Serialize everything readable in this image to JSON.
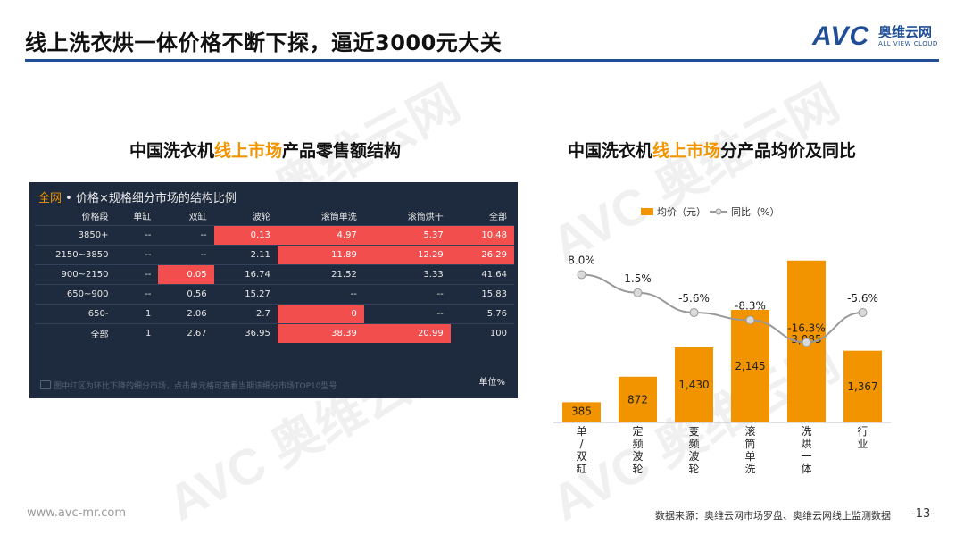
{
  "page": {
    "title": "线上洗衣烘一体价格不断下探，逼近3000元大关",
    "logo": {
      "mark": "AVC",
      "cn": "奥维云网",
      "en": "ALL VIEW CLOUD"
    },
    "watermark": {
      "mark": "AVC",
      "cn": "奥维云网",
      "en": "ALL VIEW CLOUD"
    },
    "footer": {
      "url": "www.avc-mr.com",
      "source": "数据来源：奥维云网市场罗盘、奥维云网线上监测数据",
      "page_number": "-13-"
    },
    "colors": {
      "brand_blue": "#1f4e96",
      "accent_orange": "#f29400",
      "table_bg": "#1e2a3d",
      "highlight_red": "#f24e4e",
      "line_gray": "#999999"
    }
  },
  "left": {
    "subtitle": {
      "pre": "中国洗衣机",
      "highlight": "线上市场",
      "post": "产品零售额结构"
    },
    "panel_tag": "全网",
    "panel_title": " • 价格×规格细分市场的结构比例",
    "columns": [
      "价格段",
      "单缸",
      "双缸",
      "波轮",
      "滚筒单洗",
      "滚筒烘干",
      "全部"
    ],
    "rows": [
      {
        "cells": [
          "3850+",
          "--",
          "--",
          "0.13",
          "4.97",
          "5.37",
          "10.48"
        ],
        "red": [
          3,
          4,
          5,
          6
        ]
      },
      {
        "cells": [
          "2150~3850",
          "--",
          "--",
          "2.11",
          "11.89",
          "12.29",
          "26.29"
        ],
        "red": [
          4,
          5,
          6
        ]
      },
      {
        "cells": [
          "900~2150",
          "--",
          "0.05",
          "16.74",
          "21.52",
          "3.33",
          "41.64"
        ],
        "red": [
          2
        ]
      },
      {
        "cells": [
          "650~900",
          "--",
          "0.56",
          "15.27",
          "--",
          "--",
          "15.83"
        ],
        "red": []
      },
      {
        "cells": [
          "650-",
          "1",
          "2.06",
          "2.7",
          "0",
          "--",
          "5.76"
        ],
        "red": [
          4
        ]
      },
      {
        "cells": [
          "全部",
          "1",
          "2.67",
          "36.95",
          "38.39",
          "20.99",
          "100"
        ],
        "red": [
          4,
          5
        ]
      }
    ],
    "footnote": "图中红区为环比下降的细分市场，点击单元格可查看当期该细分市场TOP10型号",
    "unit": "单位%"
  },
  "right": {
    "subtitle": {
      "pre": "中国洗衣机",
      "highlight": "线上市场",
      "post": "分产品均价及同比"
    }
  },
  "chart_data": {
    "type": "bar",
    "categories": [
      "单/双缸",
      "定频波轮",
      "变频波轮",
      "滚筒单洗",
      "洗烘一体",
      "行业"
    ],
    "series": [
      {
        "name": "均价（元）",
        "type": "bar",
        "axis": "left",
        "values": [
          385,
          872,
          1430,
          2145,
          3085,
          1367
        ],
        "labels": [
          "385",
          "872",
          "1,430",
          "2,145",
          "3,085",
          "1,367"
        ],
        "color": "#f29400"
      },
      {
        "name": "同比（%）",
        "type": "line",
        "axis": "right",
        "values": [
          8.0,
          1.5,
          -5.6,
          -8.3,
          -16.3,
          -5.6
        ],
        "labels": [
          "8.0%",
          "1.5%",
          "-5.6%",
          "-8.3%",
          "-16.3%",
          "-5.6%"
        ],
        "color": "#999999"
      }
    ],
    "ylim": [
      0,
      3200
    ],
    "y2lim": [
      -45,
      20
    ],
    "legend": "top",
    "grid": false
  }
}
